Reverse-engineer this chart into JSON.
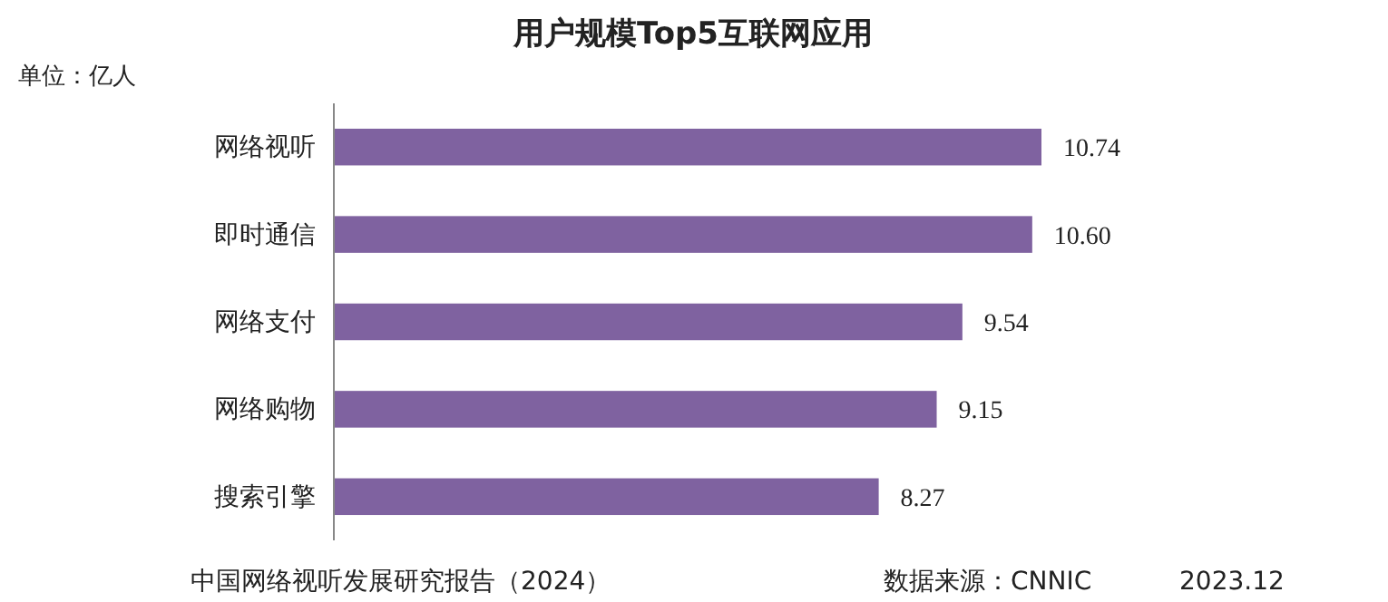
{
  "chart_data": {
    "type": "bar",
    "orientation": "horizontal",
    "title": "用户规模Top5互联网应用",
    "categories": [
      "网络视听",
      "即时通信",
      "网络支付",
      "网络购物",
      "搜索引擎"
    ],
    "values": [
      10.74,
      10.6,
      9.54,
      9.15,
      8.27
    ],
    "value_labels": [
      "10.74",
      "10.60",
      "9.54",
      "9.15",
      "8.27"
    ],
    "color": "#7f62a0",
    "tick_labels": "y",
    "annotations": [
      "单位：亿人",
      "中国网络视听发展研究报告（2024）",
      "数据来源：CNNIC",
      "2023.12"
    ]
  }
}
